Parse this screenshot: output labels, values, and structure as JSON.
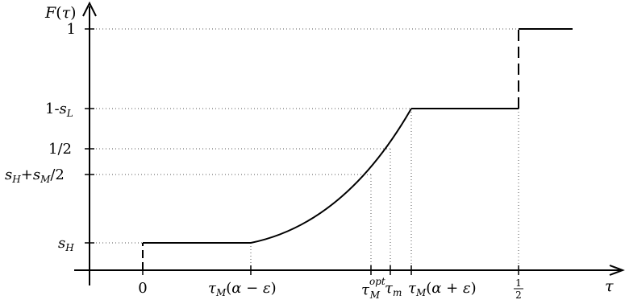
{
  "axes": {
    "y_label": "F(τ)",
    "x_label": "τ"
  },
  "y_ticks": [
    {
      "id": "sH",
      "label": "s_H"
    },
    {
      "id": "sHsM2",
      "label": "s_H+s_M/2"
    },
    {
      "id": "half",
      "label": "1/2"
    },
    {
      "id": "oneMinusSL",
      "label": "1-s_L"
    },
    {
      "id": "one",
      "label": "1"
    }
  ],
  "x_ticks": [
    {
      "id": "zero",
      "label": "0"
    },
    {
      "id": "tauMminus",
      "label": "τ_M(α − ε)"
    },
    {
      "id": "tauMopt",
      "label": "τ_M^opt"
    },
    {
      "id": "taum",
      "label": "τ_m"
    },
    {
      "id": "tauMplus",
      "label": "τ_M(α + ε)"
    },
    {
      "id": "xhalf",
      "label": "1/2"
    }
  ]
}
